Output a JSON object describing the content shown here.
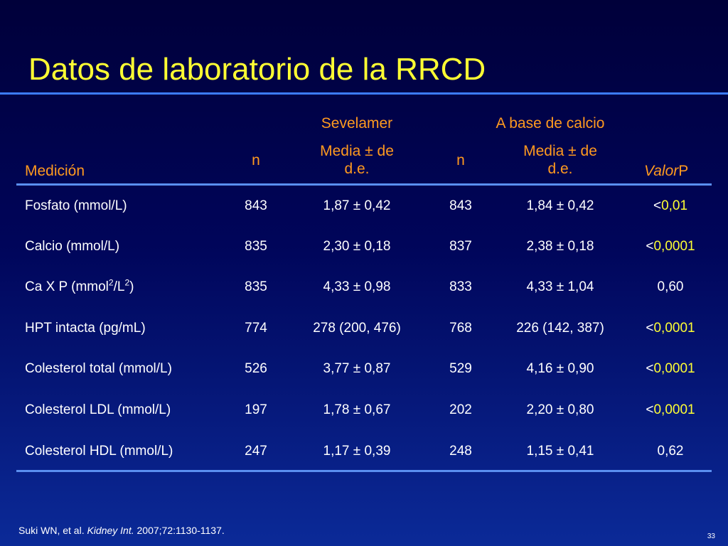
{
  "title": "Datos de laboratorio de la RRCD",
  "header": {
    "group_sevelamer": "Sevelamer",
    "group_calcio": "A base de calcio",
    "col_medicion": "Medición",
    "col_n": "n",
    "col_media_line1": "Media ±  de",
    "col_media_line2": "d.e.",
    "col_valor": "Valor",
    "col_p": "P"
  },
  "rows": [
    {
      "medicion": "Fosfato (mmol/L)",
      "n1": "843",
      "m1": "1,87 ± 0,42",
      "n2": "843",
      "m2": "1,84 ± 0,42",
      "p_lt": "<",
      "p_val": "0,01",
      "p_val_color": "#ffff33"
    },
    {
      "medicion": "Calcio (mmol/L)",
      "n1": "835",
      "m1": "2,30 ± 0,18",
      "n2": "837",
      "m2": "2,38 ± 0,18",
      "p_lt": "<",
      "p_val": "0,0001",
      "p_val_color": "#ffff33"
    },
    {
      "medicion_pre": "Ca X P (mmol",
      "medicion_sup1": "2",
      "medicion_mid": "/L",
      "medicion_sup2": "2",
      "medicion_post": ")",
      "n1": "835",
      "m1": "4,33 ± 0,98",
      "n2": "833",
      "m2": "4,33 ± 1,04",
      "p_lt": "",
      "p_val": "0,60",
      "p_val_color": "#ffffff"
    },
    {
      "medicion": "HPT intacta (pg/mL)",
      "n1": "774",
      "m1": "278 (200, 476)",
      "n2": "768",
      "m2": "226 (142, 387)",
      "p_lt": "<",
      "p_val": "0,0001",
      "p_val_color": "#ffff33"
    },
    {
      "medicion": "Colesterol total (mmol/L)",
      "n1": "526",
      "m1": "3,77 ± 0,87",
      "n2": "529",
      "m2": "4,16 ± 0,90",
      "p_lt": "<",
      "p_val": "0,0001",
      "p_val_color": "#ffff33"
    },
    {
      "medicion": "Colesterol LDL (mmol/L)",
      "n1": "197",
      "m1": "1,78 ± 0,67",
      "n2": "202",
      "m2": "2,20 ± 0,80",
      "p_lt": "<",
      "p_val": "0,0001",
      "p_val_color": "#ffff33"
    },
    {
      "medicion": "Colesterol HDL (mmol/L)",
      "n1": "247",
      "m1": "1,17 ± 0,39",
      "n2": "248",
      "m2": "1,15 ± 0,41",
      "p_lt": "",
      "p_val": "0,62",
      "p_val_color": "#ffffff"
    }
  ],
  "citation": {
    "authors": "Suki WN, et al. ",
    "journal": "Kidney Int.",
    "ref": " 2007;72:1130-1137."
  },
  "page_number": "33",
  "colors": {
    "title": "#ffff33",
    "header_text": "#ff9a1f",
    "rule": "#5a8ff0",
    "background_top": "#00003a",
    "background_bottom": "#0b2a98"
  }
}
